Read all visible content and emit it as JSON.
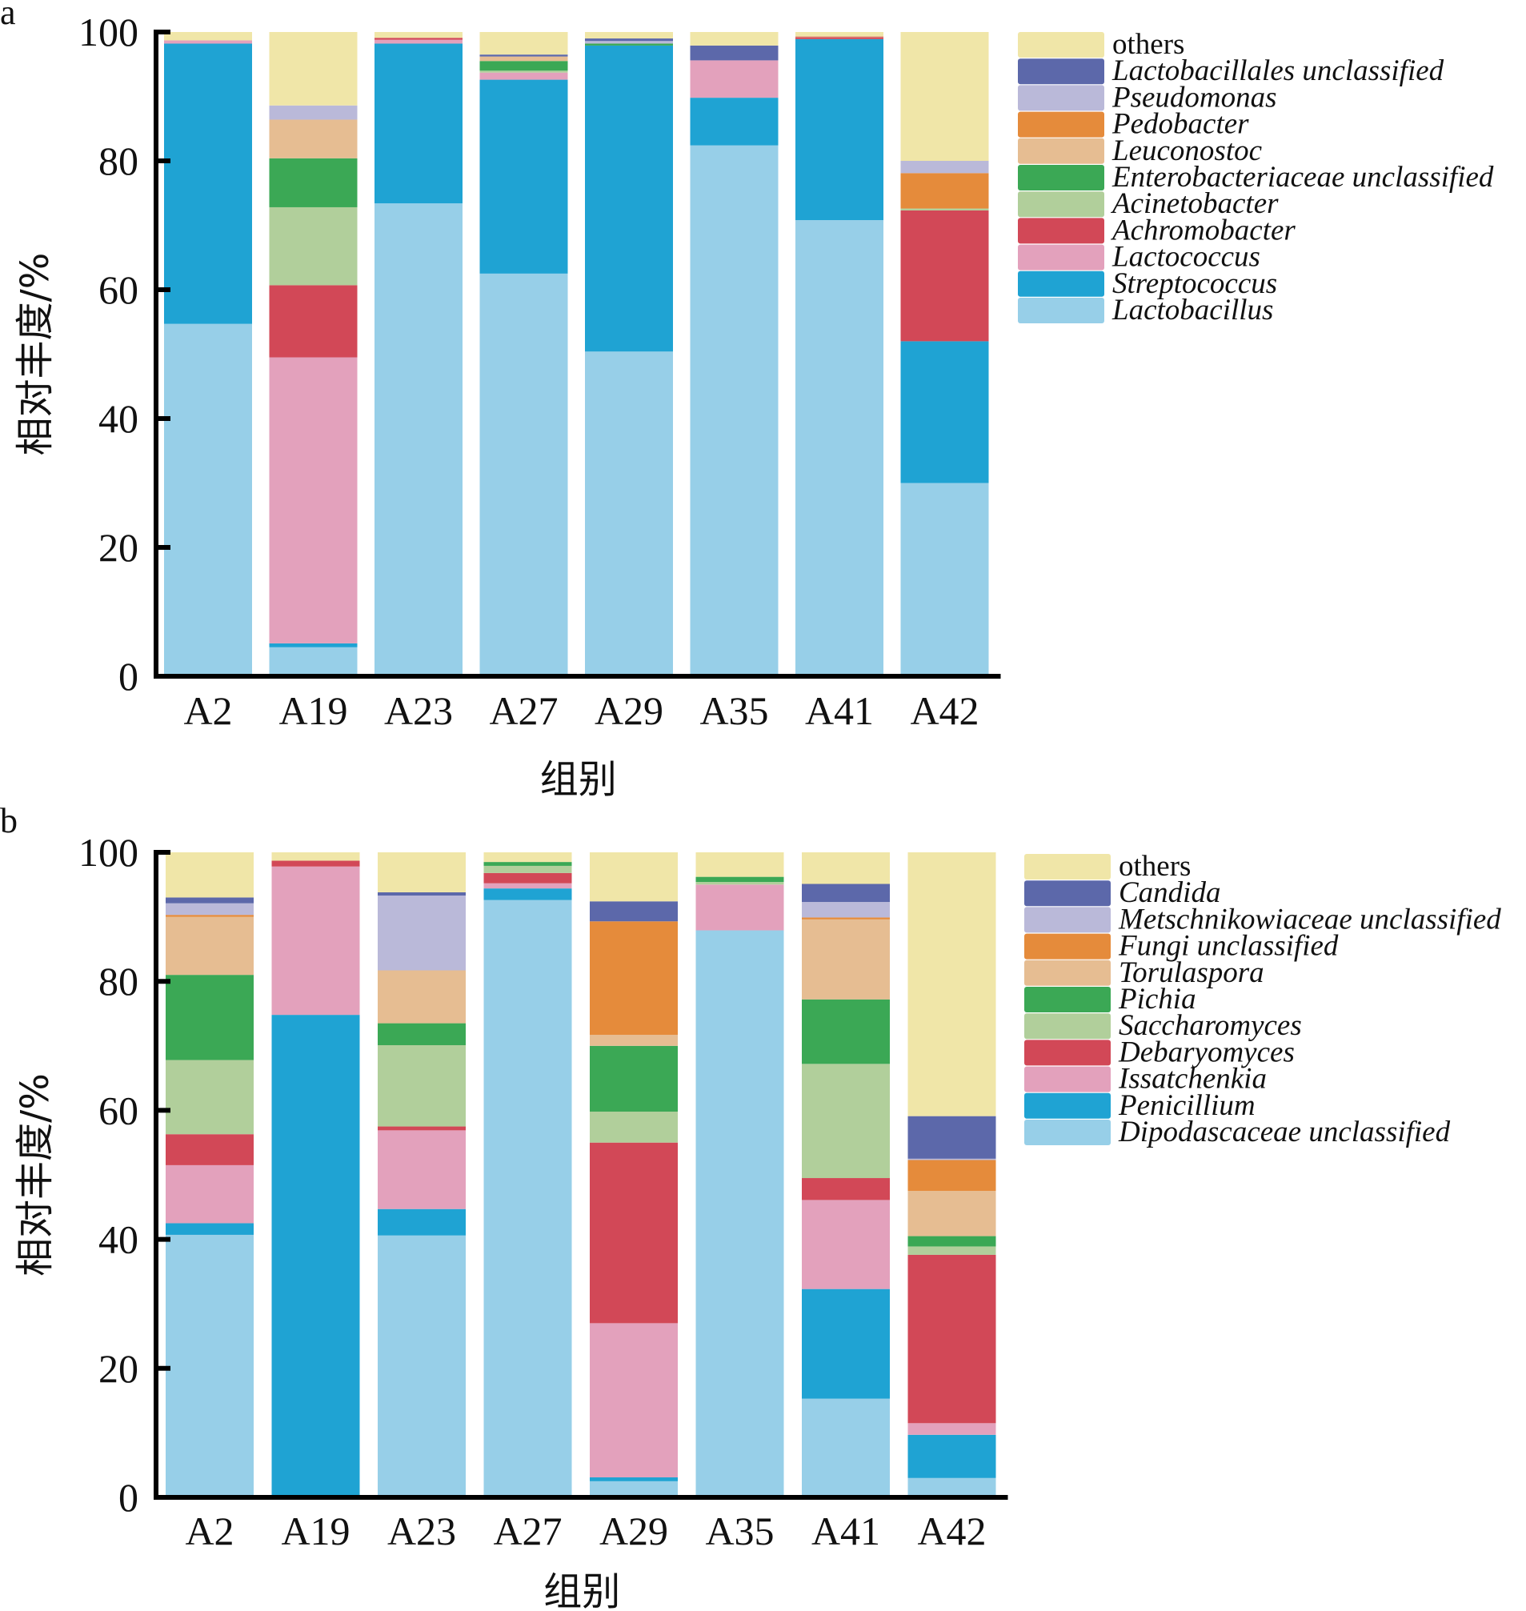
{
  "chart_data": [
    {
      "type": "bar",
      "stacked": true,
      "panel_label": "a",
      "xlabel": "组别",
      "ylabel": "相对丰度/%",
      "ylim": [
        0,
        100
      ],
      "yticks": [
        0,
        20,
        40,
        60,
        80,
        100
      ],
      "grid": false,
      "legend_position": "right-top",
      "categories": [
        "A2",
        "A19",
        "A23",
        "A27",
        "A29",
        "A35",
        "A41",
        "A42"
      ],
      "series": [
        {
          "name": "Lactobacillus",
          "italic": true,
          "color": "#97cfe8",
          "values": [
            54.7,
            4.5,
            73.4,
            62.5,
            50.4,
            82.4,
            70.8,
            30.0
          ]
        },
        {
          "name": "Streptococcus",
          "italic": true,
          "color": "#1fa3d3",
          "values": [
            43.5,
            0.6,
            24.8,
            30.1,
            47.5,
            7.4,
            28.1,
            22.0
          ]
        },
        {
          "name": "Lactococcus",
          "italic": true,
          "color": "#e3a1bc",
          "values": [
            0.5,
            44.4,
            0.6,
            1.1,
            0.0,
            5.8,
            0.0,
            0.0
          ]
        },
        {
          "name": "Achromobacter",
          "italic": true,
          "color": "#d24857",
          "values": [
            0.0,
            11.2,
            0.3,
            0.0,
            0.0,
            0.0,
            0.3,
            20.3
          ]
        },
        {
          "name": "Acinetobacter",
          "italic": true,
          "color": "#b1cf9b",
          "values": [
            0.0,
            12.1,
            0.0,
            0.3,
            0.0,
            0.0,
            0.0,
            0.3
          ]
        },
        {
          "name": "Enterobacteriaceae unclassified",
          "italic": true,
          "color": "#3ba855",
          "values": [
            0.0,
            7.6,
            0.0,
            1.5,
            0.3,
            0.0,
            0.0,
            0.0
          ]
        },
        {
          "name": "Leuconostoc",
          "italic": true,
          "color": "#e6bd92",
          "values": [
            0.0,
            6.0,
            0.0,
            0.7,
            0.0,
            0.0,
            0.2,
            0.0
          ]
        },
        {
          "name": "Pedobacter",
          "italic": true,
          "color": "#e58b3b",
          "values": [
            0.0,
            0.0,
            0.0,
            0.0,
            0.0,
            0.0,
            0.0,
            5.5
          ]
        },
        {
          "name": "Pseudomonas",
          "italic": true,
          "color": "#bab9d9",
          "values": [
            0.0,
            2.2,
            0.0,
            0.0,
            0.4,
            0.0,
            0.0,
            1.9
          ]
        },
        {
          "name": "Lactobacillales unclassified",
          "italic": true,
          "color": "#5c68aa",
          "values": [
            0.0,
            0.0,
            0.0,
            0.3,
            0.4,
            2.3,
            0.0,
            0.0
          ]
        },
        {
          "name": "others",
          "italic": false,
          "color": "#f0e6a8",
          "values": [
            1.3,
            11.4,
            0.9,
            3.5,
            1.0,
            2.1,
            0.6,
            20.0
          ]
        }
      ]
    },
    {
      "type": "bar",
      "stacked": true,
      "panel_label": "b",
      "xlabel": "组别",
      "ylabel": "相对丰度/%",
      "ylim": [
        0,
        100
      ],
      "yticks": [
        0,
        20,
        40,
        60,
        80,
        100
      ],
      "grid": false,
      "legend_position": "right-top",
      "categories": [
        "A2",
        "A19",
        "A23",
        "A27",
        "A29",
        "A35",
        "A41",
        "A42"
      ],
      "series": [
        {
          "name": "Dipodascaceae unclassified",
          "italic": true,
          "color": "#97cfe8",
          "values": [
            40.7,
            0.0,
            40.6,
            92.6,
            2.5,
            87.9,
            15.3,
            3.0
          ]
        },
        {
          "name": "Penicillium",
          "italic": true,
          "color": "#1fa3d3",
          "values": [
            1.8,
            74.8,
            4.1,
            1.8,
            0.6,
            0.0,
            17.0,
            6.7
          ]
        },
        {
          "name": "Issatchenkia",
          "italic": true,
          "color": "#e3a1bc",
          "values": [
            9.0,
            23.0,
            12.2,
            0.8,
            23.9,
            7.1,
            13.8,
            1.8
          ]
        },
        {
          "name": "Debaryomyces",
          "italic": true,
          "color": "#d24857",
          "values": [
            4.8,
            0.9,
            0.6,
            1.6,
            28.0,
            0.0,
            3.4,
            26.1
          ]
        },
        {
          "name": "Saccharomyces",
          "italic": true,
          "color": "#b1cf9b",
          "values": [
            11.5,
            0.0,
            12.6,
            1.1,
            4.8,
            0.4,
            17.7,
            1.3
          ]
        },
        {
          "name": "Pichia",
          "italic": true,
          "color": "#3ba855",
          "values": [
            13.2,
            0.0,
            3.4,
            0.6,
            10.2,
            0.8,
            10.0,
            1.6
          ]
        },
        {
          "name": "Torulaspora",
          "italic": true,
          "color": "#e6bd92",
          "values": [
            9.0,
            0.0,
            8.2,
            0.0,
            1.7,
            0.0,
            12.4,
            7.0
          ]
        },
        {
          "name": "Fungi unclassified",
          "italic": true,
          "color": "#e58b3b",
          "values": [
            0.3,
            0.0,
            0.0,
            0.0,
            17.6,
            0.0,
            0.3,
            4.8
          ]
        },
        {
          "name": "Metschnikowiaceae unclassified",
          "italic": true,
          "color": "#bab9d9",
          "values": [
            1.8,
            0.0,
            11.6,
            0.0,
            0.0,
            0.0,
            2.4,
            0.2
          ]
        },
        {
          "name": "Candida",
          "italic": true,
          "color": "#5c68aa",
          "values": [
            0.9,
            0.0,
            0.5,
            0.0,
            3.1,
            0.0,
            2.8,
            6.6
          ]
        },
        {
          "name": "others",
          "italic": false,
          "color": "#f0e6a8",
          "values": [
            7.0,
            1.3,
            6.2,
            1.5,
            7.6,
            3.8,
            4.9,
            40.9
          ]
        }
      ]
    }
  ]
}
